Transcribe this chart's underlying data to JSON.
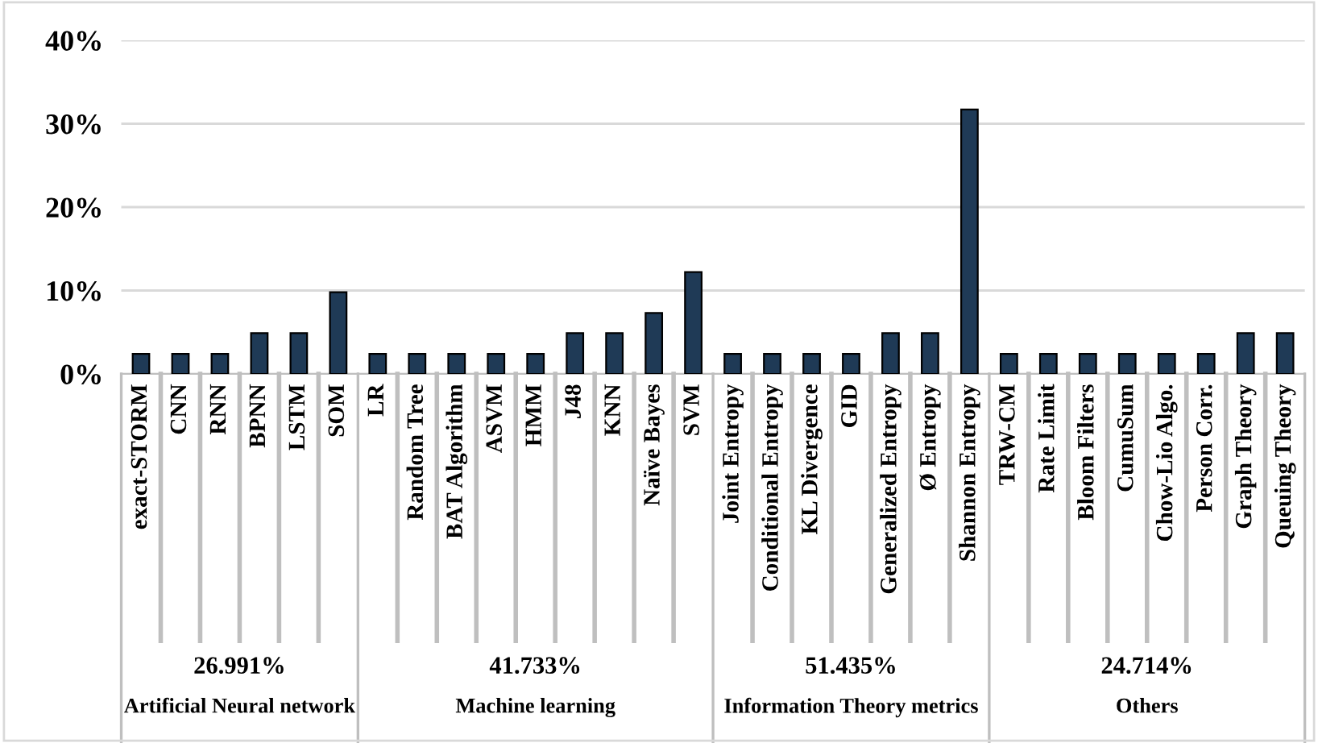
{
  "chart_data": {
    "type": "bar",
    "categories": [
      "exact-STORM",
      "CNN",
      "RNN",
      "BPNN",
      "LSTM",
      "SOM",
      "LR",
      "Random Tree",
      "BAT Algorithm",
      "ASVM",
      "HMM",
      "J48",
      "KNN",
      "Naïve Bayes",
      "SVM",
      "Joint Entropy",
      "Conditional Entropy",
      "KL Divergence",
      "GID",
      "Generalized Entropy",
      "Ø Entropy",
      "Shannon Entropy",
      "TRW-CM",
      "Rate Limit",
      "Bloom Filters",
      "CumuSum",
      "Chow-Lio Algo.",
      "Person Corr.",
      "Graph Theory",
      "Queuing Theory"
    ],
    "values": [
      2.4,
      2.4,
      2.4,
      4.9,
      4.9,
      9.8,
      2.4,
      2.4,
      2.4,
      2.4,
      2.4,
      4.9,
      4.9,
      7.3,
      12.2,
      2.4,
      2.4,
      2.4,
      2.4,
      4.9,
      4.9,
      31.7,
      2.4,
      2.4,
      2.4,
      2.4,
      2.4,
      2.4,
      4.9,
      4.9
    ],
    "color": "#1f3a56",
    "ylim": [
      0,
      40
    ],
    "yticks": [
      {
        "value": 0,
        "label": "0%"
      },
      {
        "value": 10,
        "label": "10%"
      },
      {
        "value": 20,
        "label": "20%"
      },
      {
        "value": 30,
        "label": "30%"
      },
      {
        "value": 40,
        "label": "40%"
      }
    ],
    "grid": "y",
    "annotations": [
      "26.991%",
      "Artificial Neural network",
      "41.733%",
      "Machine learning",
      "51.435%",
      "Information Theory metrics",
      "24.714%",
      "Others"
    ]
  }
}
